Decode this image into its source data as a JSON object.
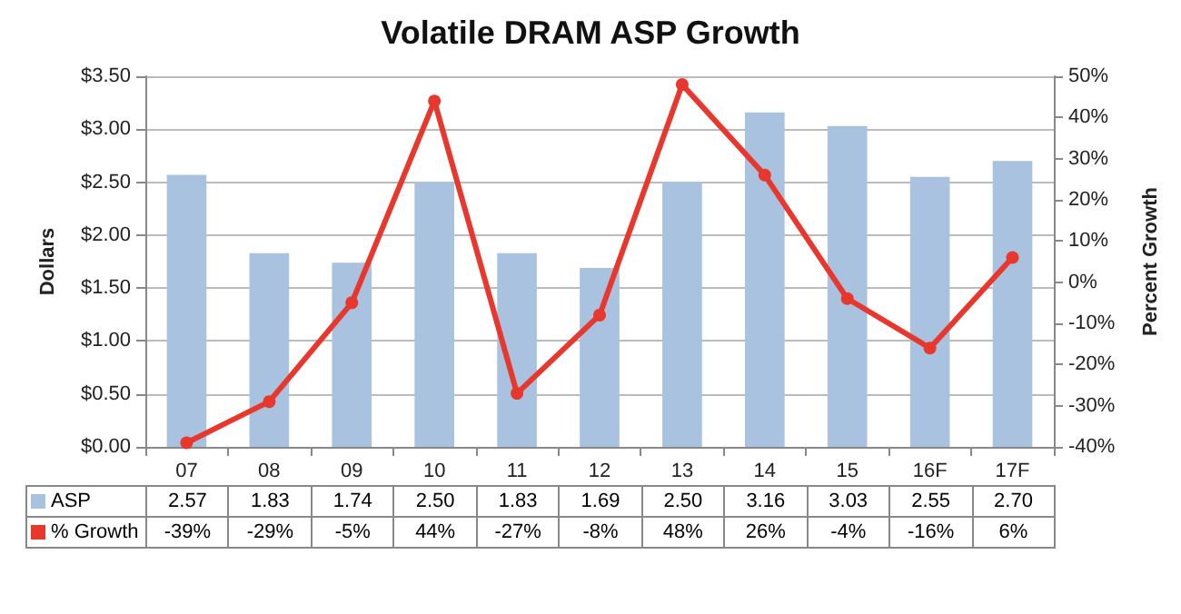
{
  "chart_data": {
    "type": "bar",
    "title": "Volatile DRAM ASP Growth",
    "ylabel": "Dollars",
    "y2label": "Percent Growth",
    "categories": [
      "07",
      "08",
      "09",
      "10",
      "11",
      "12",
      "13",
      "14",
      "15",
      "16F",
      "17F"
    ],
    "series": [
      {
        "name": "ASP",
        "color": "#a8c2df",
        "values": [
          2.57,
          1.83,
          1.74,
          2.5,
          1.83,
          1.69,
          2.5,
          3.16,
          3.03,
          2.55,
          2.7
        ],
        "value_labels": [
          "2.57",
          "1.83",
          "1.74",
          "2.50",
          "1.83",
          "1.69",
          "2.50",
          "3.16",
          "3.03",
          "2.55",
          "2.70"
        ]
      },
      {
        "name": "% Growth",
        "type": "line",
        "axis": "y2",
        "color": "#e8372c",
        "marker": "circle",
        "line_style": "solid",
        "values": [
          -39,
          -29,
          -5,
          44,
          -27,
          -8,
          48,
          26,
          -4,
          -16,
          6
        ],
        "value_labels": [
          "-39%",
          "-29%",
          "-5%",
          "44%",
          "-27%",
          "-8%",
          "48%",
          "26%",
          "-4%",
          "-16%",
          "6%"
        ]
      }
    ],
    "ylim": [
      0,
      3.5
    ],
    "yticks": [
      {
        "value": 0,
        "label": "$0.00"
      },
      {
        "value": 0.5,
        "label": "$0.50"
      },
      {
        "value": 1,
        "label": "$1.00"
      },
      {
        "value": 1.5,
        "label": "$1.50"
      },
      {
        "value": 2,
        "label": "$2.00"
      },
      {
        "value": 2.5,
        "label": "$2.50"
      },
      {
        "value": 3,
        "label": "$3.00"
      },
      {
        "value": 3.5,
        "label": "$3.50"
      }
    ],
    "y2lim": [
      -40,
      50
    ],
    "y2ticks": [
      {
        "value": -40,
        "label": "-40%"
      },
      {
        "value": -30,
        "label": "-30%"
      },
      {
        "value": -20,
        "label": "-20%"
      },
      {
        "value": -10,
        "label": "-10%"
      },
      {
        "value": 0,
        "label": "0%"
      },
      {
        "value": 10,
        "label": "10%"
      },
      {
        "value": 20,
        "label": "20%"
      },
      {
        "value": 30,
        "label": "30%"
      },
      {
        "value": 40,
        "label": "40%"
      },
      {
        "value": 50,
        "label": "50%"
      }
    ],
    "grid": "y",
    "legend": "bottom left"
  }
}
